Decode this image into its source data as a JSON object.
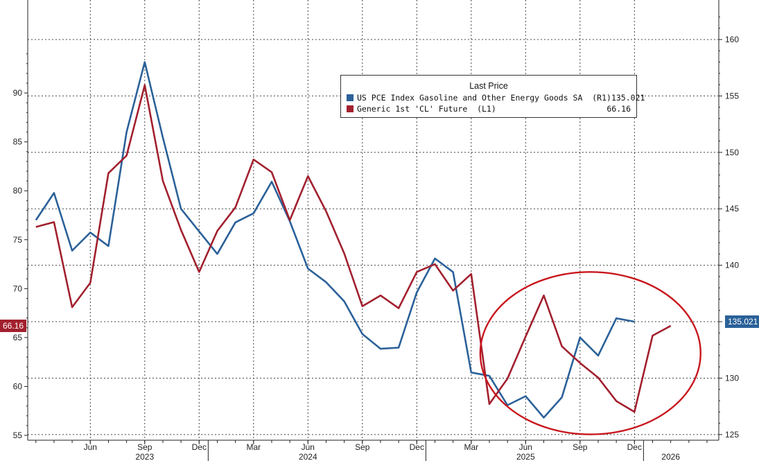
{
  "chart_data": {
    "type": "line",
    "legend": {
      "title": "Last Price",
      "position": "top-right",
      "entries": [
        {
          "name": "US PCE Index Gasoline and Other Energy Goods SA  (R1)",
          "value": "135.021",
          "color": "#2b6199"
        },
        {
          "name": "Generic 1st 'CL' Future  (L1)",
          "value": "66.16",
          "color": "#a2202e"
        }
      ]
    },
    "x_ticks": [
      {
        "label": "Jun",
        "month": "2023-06"
      },
      {
        "label": "Sep",
        "month": "2023-09"
      },
      {
        "label": "Dec",
        "month": "2023-12"
      },
      {
        "label": "Mar",
        "month": "2024-03"
      },
      {
        "label": "Jun",
        "month": "2024-06"
      },
      {
        "label": "Sep",
        "month": "2024-09"
      },
      {
        "label": "Dec",
        "month": "2024-12"
      },
      {
        "label": "Mar",
        "month": "2025-03"
      },
      {
        "label": "Jun",
        "month": "2025-06"
      },
      {
        "label": "Sep",
        "month": "2025-09"
      },
      {
        "label": "Dec",
        "month": "2025-12"
      }
    ],
    "x_years": [
      {
        "label": "2023",
        "month": "2023-09"
      },
      {
        "label": "2024",
        "month": "2024-06"
      },
      {
        "label": "2025",
        "month": "2025-06"
      },
      {
        "label": "2026",
        "month": "2026-02"
      }
    ],
    "year_separators": [
      "2024-01",
      "2025-01",
      "2026-01"
    ],
    "x_range": [
      "2023-03",
      "2026-02"
    ],
    "left_axis": {
      "ylim": [
        55,
        100
      ],
      "ticks": [
        55,
        60,
        65,
        70,
        75,
        80,
        85,
        90
      ]
    },
    "right_axis": {
      "ylim": [
        124.5,
        163.5
      ],
      "ticks": [
        125,
        130,
        135,
        140,
        145,
        150,
        155,
        160
      ]
    },
    "grid": true,
    "series": [
      {
        "name": "US PCE Index Gasoline and Other Energy Goods SA  (R1)",
        "axis": "right",
        "color": "#2b6199",
        "last_label": "135.021",
        "points": [
          [
            "2023-03",
            144.0
          ],
          [
            "2023-04",
            146.4
          ],
          [
            "2023-05",
            141.3
          ],
          [
            "2023-06",
            142.9
          ],
          [
            "2023-07",
            141.7
          ],
          [
            "2023-08",
            151.8
          ],
          [
            "2023-09",
            158.0
          ],
          [
            "2023-10",
            151.3
          ],
          [
            "2023-11",
            145.0
          ],
          [
            "2023-12",
            143.0
          ],
          [
            "2024-01",
            141.0
          ],
          [
            "2024-02",
            143.8
          ],
          [
            "2024-03",
            144.6
          ],
          [
            "2024-04",
            147.4
          ],
          [
            "2024-05",
            143.9
          ],
          [
            "2024-06",
            139.7
          ],
          [
            "2024-07",
            138.5
          ],
          [
            "2024-08",
            136.8
          ],
          [
            "2024-09",
            133.9
          ],
          [
            "2024-10",
            132.6
          ],
          [
            "2024-11",
            132.7
          ],
          [
            "2024-12",
            137.6
          ],
          [
            "2024-13",
            140.6
          ],
          [
            "2025-02",
            139.4
          ],
          [
            "2025-03",
            130.5
          ],
          [
            "2025-04",
            130.2
          ],
          [
            "2025-05",
            127.6
          ],
          [
            "2025-06",
            128.4
          ],
          [
            "2025-07",
            126.5
          ],
          [
            "2025-08",
            128.3
          ],
          [
            "2025-09",
            133.6
          ],
          [
            "2025-10",
            132.0
          ],
          [
            "2025-11",
            135.3
          ],
          [
            "2025-12",
            135.0
          ]
        ]
      },
      {
        "name": "Generic 1st 'CL' Future  (L1)",
        "axis": "left",
        "color": "#a2202e",
        "last_label": "66.16",
        "points": [
          [
            "2023-03",
            76.3
          ],
          [
            "2023-04",
            76.8
          ],
          [
            "2023-05",
            68.1
          ],
          [
            "2023-06",
            70.6
          ],
          [
            "2023-07",
            81.8
          ],
          [
            "2023-08",
            83.6
          ],
          [
            "2023-09",
            90.8
          ],
          [
            "2023-10",
            81.0
          ],
          [
            "2023-11",
            76.0
          ],
          [
            "2023-12",
            71.7
          ],
          [
            "2024-01",
            75.9
          ],
          [
            "2024-02",
            78.3
          ],
          [
            "2024-03",
            83.2
          ],
          [
            "2024-04",
            81.9
          ],
          [
            "2024-05",
            77.0
          ],
          [
            "2024-06",
            81.5
          ],
          [
            "2024-07",
            77.9
          ],
          [
            "2024-08",
            73.6
          ],
          [
            "2024-09",
            68.2
          ],
          [
            "2024-10",
            69.3
          ],
          [
            "2024-11",
            68.0
          ],
          [
            "2024-12",
            71.7
          ],
          [
            "2025-01",
            72.5
          ],
          [
            "2025-02",
            69.8
          ],
          [
            "2025-03",
            71.5
          ],
          [
            "2025-04",
            58.2
          ],
          [
            "2025-05",
            60.8
          ],
          [
            "2025-06",
            65.1
          ],
          [
            "2025-07",
            69.3
          ],
          [
            "2025-08",
            64.1
          ],
          [
            "2025-09",
            62.4
          ],
          [
            "2025-10",
            60.9
          ],
          [
            "2025-11",
            58.5
          ],
          [
            "2025-12",
            57.4
          ],
          [
            "2026-01",
            65.2
          ],
          [
            "2026-02",
            66.2
          ]
        ]
      }
    ],
    "annotations": [
      {
        "type": "ellipse",
        "color": "#c8161d",
        "from_month": "2025-04",
        "to_month": "2026-04",
        "y_top": 71.7,
        "y_bottom": 55.1
      }
    ]
  }
}
